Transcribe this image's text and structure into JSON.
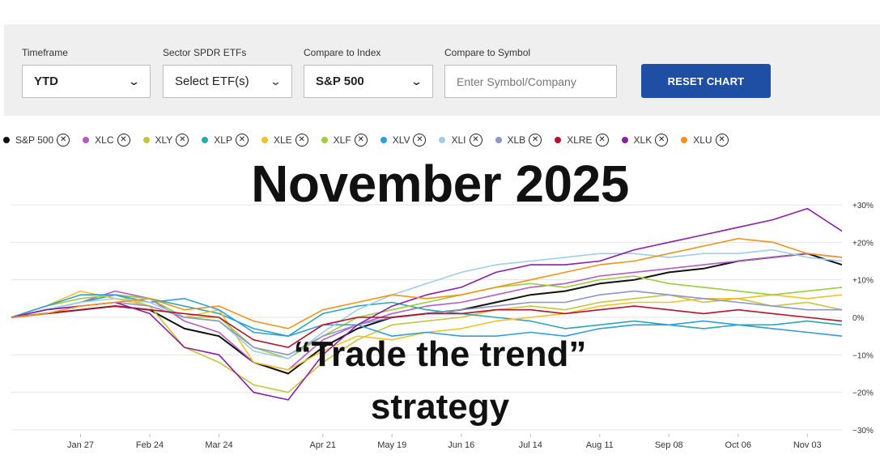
{
  "controls": {
    "timeframe": {
      "label": "Timeframe",
      "value": "YTD"
    },
    "sector": {
      "label": "Sector SPDR ETFs",
      "value": "Select ETF(s)"
    },
    "index": {
      "label": "Compare to Index",
      "value": "S&P 500"
    },
    "symbol": {
      "label": "Compare to Symbol",
      "placeholder": "Enter Symbol/Company"
    },
    "reset_label": "RESET CHART"
  },
  "legend": [
    {
      "name": "S&P 500",
      "color": "#111111"
    },
    {
      "name": "XLC",
      "color": "#b25cc2"
    },
    {
      "name": "XLY",
      "color": "#c3c63d"
    },
    {
      "name": "XLP",
      "color": "#2ba7b3"
    },
    {
      "name": "XLE",
      "color": "#f5c026"
    },
    {
      "name": "XLF",
      "color": "#9ccd3c"
    },
    {
      "name": "XLV",
      "color": "#2f9de0"
    },
    {
      "name": "XLI",
      "color": "#9fcdee"
    },
    {
      "name": "XLB",
      "color": "#8e95c8"
    },
    {
      "name": "XLRE",
      "color": "#b5122d"
    },
    {
      "name": "XLK",
      "color": "#8b1fa3"
    },
    {
      "name": "XLU",
      "color": "#f2921c"
    }
  ],
  "overlay": {
    "title": "November 2025",
    "subtitle_line1": "“Trade the trend”",
    "subtitle_line2": "strategy"
  },
  "chart_data": {
    "type": "line",
    "x_ticks": [
      "Jan 27",
      "Feb 24",
      "Mar 24",
      "Apr 21",
      "May 19",
      "Jun 16",
      "Jul 14",
      "Aug 11",
      "Sep 08",
      "Oct 06",
      "Nov 03"
    ],
    "y_ticks": [
      "+30%",
      "+20%",
      "+10%",
      "0%",
      "−10%",
      "−20%",
      "−30%"
    ],
    "ylim": [
      -30,
      30
    ],
    "x": [
      "Jan 02",
      "Jan 13",
      "Jan 27",
      "Feb 10",
      "Feb 24",
      "Mar 10",
      "Mar 24",
      "Apr 04",
      "Apr 08",
      "Apr 21",
      "May 05",
      "May 19",
      "Jun 02",
      "Jun 16",
      "Jun 30",
      "Jul 14",
      "Jul 28",
      "Aug 11",
      "Aug 25",
      "Sep 08",
      "Sep 22",
      "Oct 06",
      "Oct 20",
      "Nov 03",
      "Nov 07"
    ],
    "series": [
      {
        "name": "S&P 500",
        "values": [
          0,
          1,
          2,
          3,
          2,
          -3,
          -5,
          -12,
          -15,
          -8,
          -3,
          0,
          1,
          2,
          4,
          6,
          7,
          9,
          10,
          12,
          13,
          15,
          16,
          17,
          14
        ]
      },
      {
        "name": "XLC",
        "values": [
          0,
          2,
          4,
          7,
          5,
          -1,
          -4,
          -12,
          -14,
          -6,
          -2,
          1,
          3,
          4,
          6,
          8,
          9,
          11,
          12,
          13,
          14,
          15,
          16,
          17,
          16
        ]
      },
      {
        "name": "XLY",
        "values": [
          0,
          2,
          4,
          6,
          3,
          -8,
          -12,
          -18,
          -20,
          -12,
          -6,
          -2,
          -1,
          0,
          2,
          3,
          2,
          4,
          5,
          6,
          4,
          5,
          3,
          4,
          2
        ]
      },
      {
        "name": "XLP",
        "values": [
          0,
          2,
          4,
          6,
          5,
          3,
          1,
          -3,
          -5,
          1,
          3,
          4,
          2,
          1,
          0,
          -1,
          -3,
          -2,
          -1,
          -2,
          -3,
          -2,
          -2,
          -1,
          -2
        ]
      },
      {
        "name": "XLE",
        "values": [
          0,
          3,
          7,
          5,
          3,
          0,
          2,
          -12,
          -14,
          -9,
          -5,
          -6,
          -4,
          -3,
          -1,
          0,
          1,
          3,
          4,
          4,
          5,
          5,
          6,
          5,
          6
        ]
      },
      {
        "name": "XLF",
        "values": [
          0,
          3,
          5,
          6,
          5,
          0,
          0,
          -8,
          -11,
          -5,
          0,
          2,
          4,
          6,
          8,
          9,
          8,
          10,
          11,
          9,
          8,
          7,
          6,
          7,
          8
        ]
      },
      {
        "name": "XLV",
        "values": [
          0,
          3,
          6,
          6,
          4,
          5,
          2,
          -4,
          -5,
          -2,
          -2,
          -5,
          -4,
          -5,
          -5,
          -4,
          -5,
          -3,
          -2,
          -2,
          -1,
          -2,
          -3,
          -4,
          -5
        ]
      },
      {
        "name": "XLI",
        "values": [
          0,
          2,
          4,
          5,
          4,
          0,
          -1,
          -9,
          -11,
          -4,
          2,
          6,
          9,
          12,
          14,
          15,
          16,
          17,
          17,
          16,
          17,
          17,
          18,
          16,
          15
        ]
      },
      {
        "name": "XLB",
        "values": [
          0,
          2,
          3,
          4,
          3,
          0,
          -1,
          -8,
          -10,
          -5,
          -2,
          0,
          1,
          2,
          3,
          4,
          4,
          6,
          7,
          6,
          5,
          4,
          3,
          2,
          2
        ]
      },
      {
        "name": "XLRE",
        "values": [
          0,
          1,
          2,
          3,
          2,
          1,
          0,
          -6,
          -8,
          -2,
          0,
          0,
          1,
          1,
          2,
          2,
          1,
          2,
          3,
          2,
          1,
          2,
          1,
          0,
          -1
        ]
      },
      {
        "name": "XLK",
        "values": [
          0,
          2,
          3,
          4,
          1,
          -8,
          -10,
          -20,
          -22,
          -10,
          -2,
          3,
          6,
          8,
          12,
          14,
          14,
          15,
          18,
          20,
          22,
          24,
          26,
          29,
          23
        ]
      },
      {
        "name": "XLU",
        "values": [
          0,
          1,
          3,
          4,
          5,
          2,
          3,
          -1,
          -3,
          2,
          4,
          6,
          5,
          6,
          8,
          10,
          12,
          14,
          15,
          17,
          19,
          21,
          20,
          17,
          16
        ]
      }
    ]
  }
}
